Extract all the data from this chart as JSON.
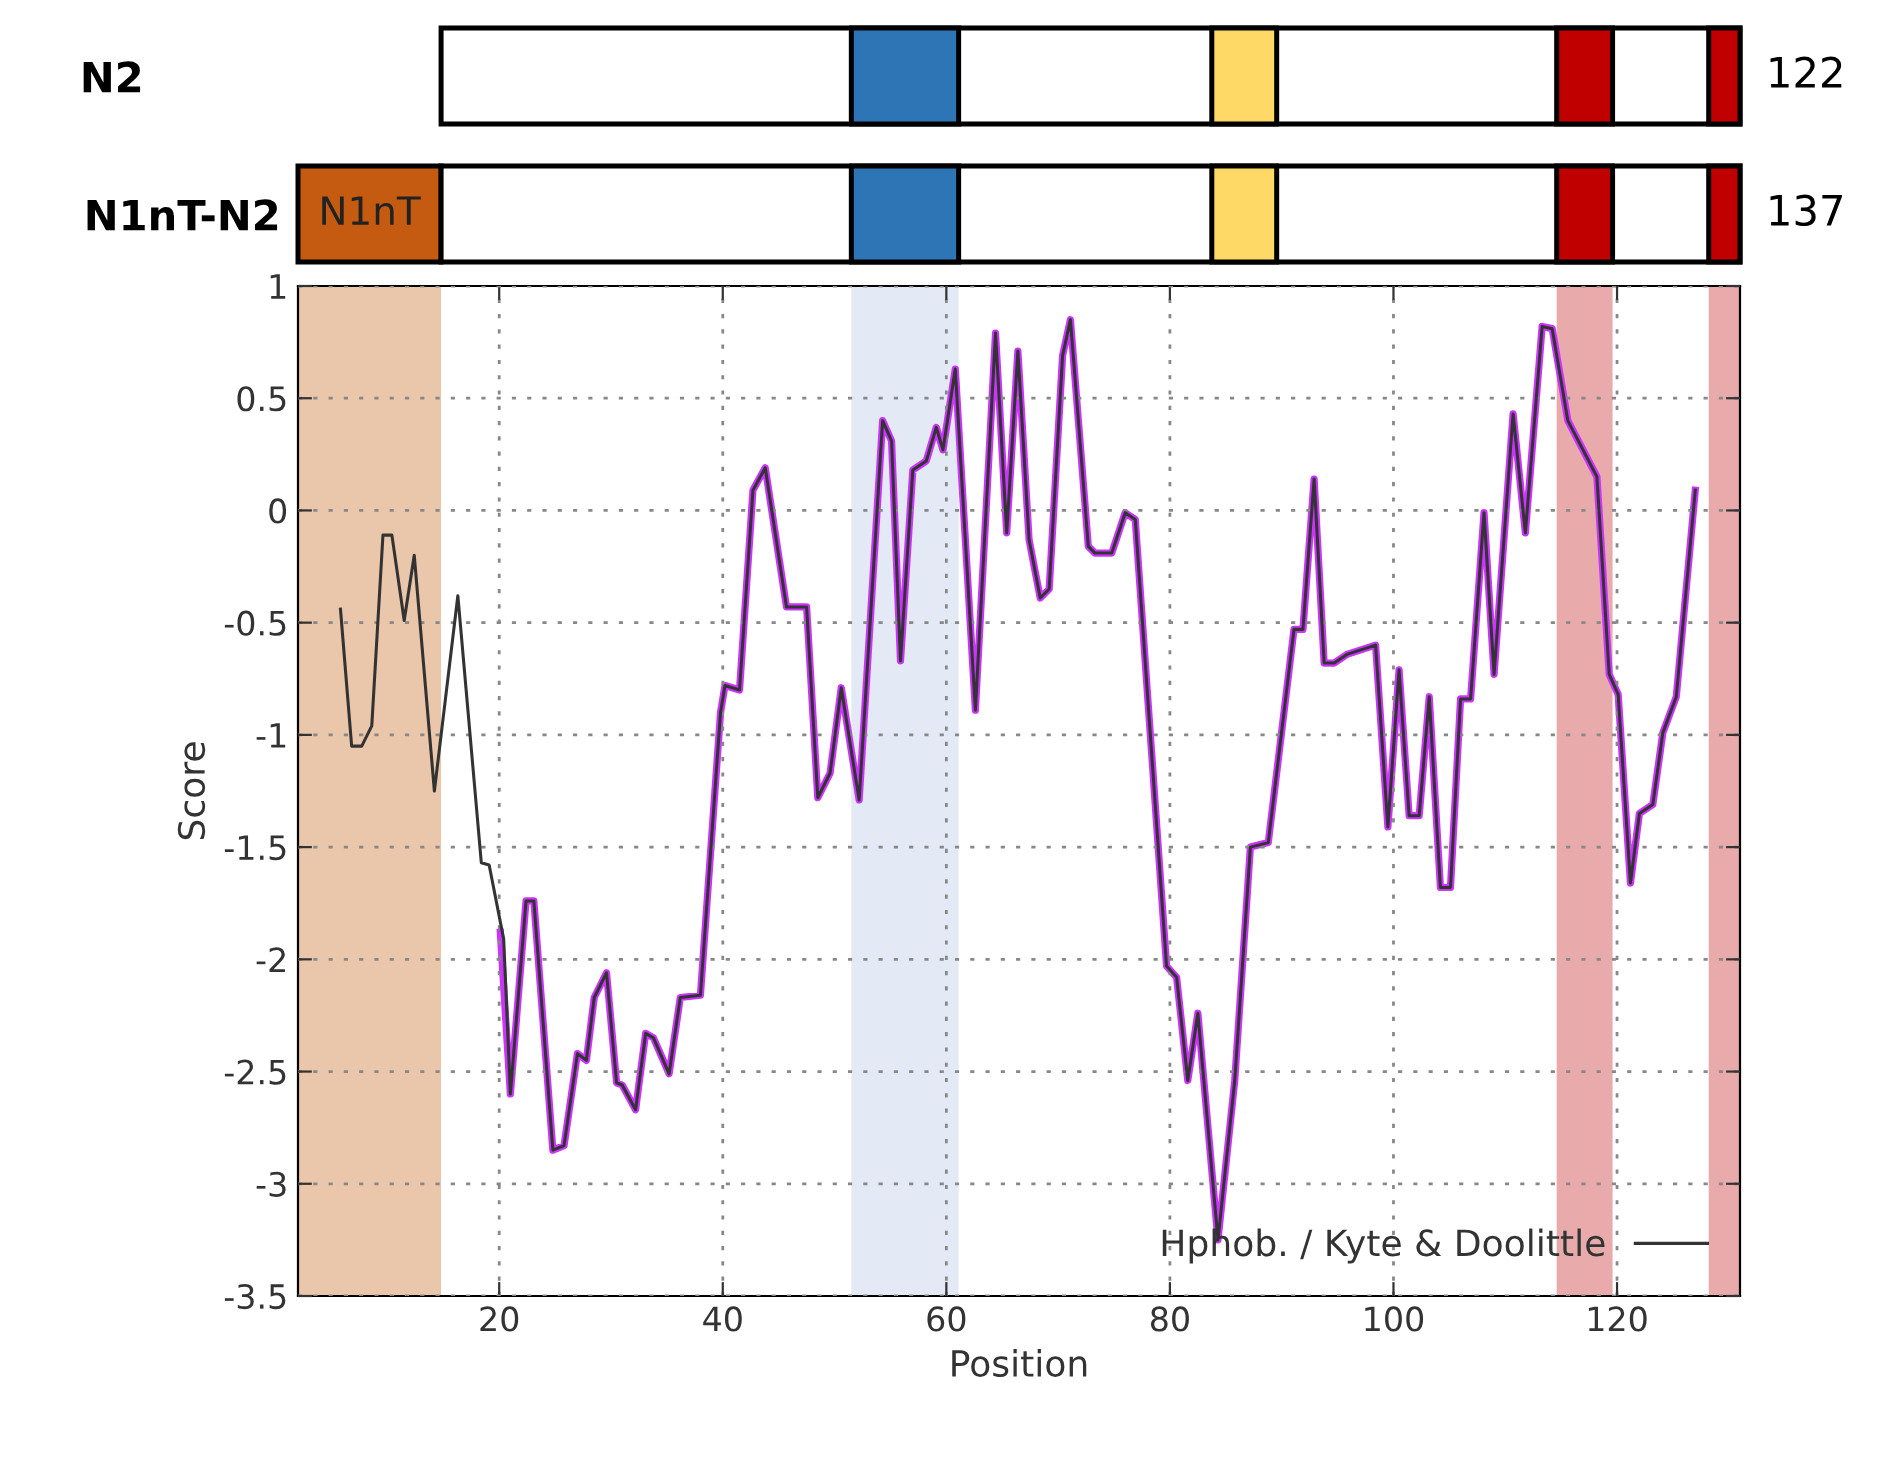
{
  "chart_data": [
    {
      "type": "other",
      "annotations": [
        "N2",
        "122"
      ]
    },
    {
      "type": "other",
      "annotations": [
        "N1nT-N2",
        "137",
        "N1nT"
      ]
    },
    {
      "type": "line",
      "xlabel": "Position",
      "ylabel": "Score",
      "xlim": [
        2,
        131
      ],
      "ylim": [
        -3.5,
        1
      ],
      "xticks": [
        20,
        40,
        60,
        80,
        100,
        120
      ],
      "yticks": [
        -3.5,
        -3,
        -2.5,
        -2,
        -1.5,
        -1,
        -0.5,
        0,
        0.5,
        1
      ],
      "grid": true,
      "legend": "bottom right",
      "line_style": "solid",
      "marker": "none",
      "bands": [
        {
          "axis": "x",
          "from": 2,
          "to": 14.8,
          "color": "#eac7ab"
        },
        {
          "axis": "x",
          "from": 51.5,
          "to": 61.1,
          "color": "#e3eaf5"
        },
        {
          "axis": "x",
          "from": 114.6,
          "to": 119.6,
          "color": "#e8aaaa"
        },
        {
          "axis": "x",
          "from": 128.2,
          "to": 131,
          "color": "#e8aaaa"
        }
      ],
      "series": [
        {
          "color": "#cc33ff",
          "x": [
            20.1,
            21.0,
            22.4,
            23.1,
            24.8,
            25.8,
            27.0,
            27.8,
            28.5,
            29.6,
            30.5,
            31.0,
            32.2,
            33.1,
            33.8,
            35.2,
            36.2,
            38.0,
            39.8,
            40.2,
            41.5,
            42.7,
            43.8,
            45.7,
            47.5,
            48.5,
            49.6,
            50.6,
            52.2,
            54.3,
            55.1,
            55.9,
            57.0,
            58.2,
            59.1,
            59.7,
            60.8,
            62.6,
            64.4,
            65.4,
            66.4,
            67.4,
            68.4,
            69.2,
            70.4,
            71.1,
            72.7,
            73.3,
            74.8,
            76.0,
            76.9,
            79.7,
            80.6,
            81.6,
            82.5,
            84.3,
            85.8,
            87.2,
            88.8,
            91.1,
            91.9,
            92.9,
            93.8,
            94.7,
            95.9,
            98.4,
            99.5,
            100.5,
            101.4,
            102.3,
            103.2,
            104.2,
            105.1,
            106.0,
            106.9,
            108.1,
            109.0,
            110.7,
            111.8,
            113.3,
            114.2,
            115.6,
            118.2,
            119.3,
            120.1,
            121.2,
            122.0,
            123.2,
            124.1,
            125.3,
            127.0
          ],
          "values": [
            -1.88,
            -2.6,
            -1.74,
            -1.74,
            -2.85,
            -2.83,
            -2.42,
            -2.45,
            -2.17,
            -2.06,
            -2.55,
            -2.56,
            -2.67,
            -2.33,
            -2.35,
            -2.51,
            -2.17,
            -2.16,
            -0.9,
            -0.78,
            -0.8,
            0.09,
            0.19,
            -0.43,
            -0.43,
            -1.28,
            -1.17,
            -0.79,
            -1.29,
            0.4,
            0.31,
            -0.67,
            0.18,
            0.22,
            0.37,
            0.27,
            0.63,
            -0.89,
            0.79,
            -0.1,
            0.71,
            -0.13,
            -0.39,
            -0.35,
            0.69,
            0.85,
            -0.16,
            -0.19,
            -0.19,
            -0.01,
            -0.04,
            -2.03,
            -2.08,
            -2.54,
            -2.24,
            -3.25,
            -2.54,
            -1.5,
            -1.48,
            -0.53,
            -0.53,
            0.14,
            -0.68,
            -0.68,
            -0.64,
            -0.6,
            -1.41,
            -0.71,
            -1.36,
            -1.36,
            -0.83,
            -1.68,
            -1.68,
            -0.84,
            -0.84,
            -0.01,
            -0.73,
            0.43,
            -0.1,
            0.82,
            0.81,
            0.4,
            0.15,
            -0.73,
            -0.82,
            -1.66,
            -1.35,
            -1.31,
            -0.99,
            -0.83,
            0.09
          ]
        },
        {
          "name": "Hphob. / Kyte & Doolittle",
          "color": "#333333",
          "x": [
            5.8,
            6.8,
            7.7,
            8.6,
            9.6,
            10.4,
            11.5,
            12.4,
            14.2,
            16.3,
            18.4,
            19.1,
            20.4,
            21.0,
            22.4,
            23.1,
            24.8,
            25.8,
            27.0,
            27.8,
            28.5,
            29.6,
            30.5,
            31.0,
            32.2,
            33.1,
            33.8,
            35.2,
            36.2,
            38.0,
            39.8,
            40.2,
            41.5,
            42.7,
            43.8,
            45.7,
            47.5,
            48.5,
            49.6,
            50.6,
            52.2,
            54.3,
            55.1,
            55.9,
            57.0,
            58.2,
            59.1,
            59.7,
            60.8,
            62.6,
            64.4,
            65.4,
            66.4,
            67.4,
            68.4,
            69.2,
            70.4,
            71.1,
            72.7,
            73.3,
            74.8,
            76.0,
            76.9,
            79.7,
            80.6,
            81.6,
            82.5,
            84.3,
            85.8,
            87.2,
            88.8,
            91.1,
            91.9,
            92.9,
            93.8,
            94.7,
            95.9,
            98.4,
            99.5,
            100.5,
            101.4,
            102.3,
            103.2,
            104.2,
            105.1,
            106.0,
            106.9,
            108.1,
            109.0,
            110.7,
            111.8,
            113.3,
            114.2,
            115.6,
            118.2,
            119.3,
            120.1,
            121.2,
            122.0,
            123.2,
            124.1,
            125.3,
            127.0
          ],
          "values": [
            -0.44,
            -1.05,
            -1.05,
            -0.96,
            -0.11,
            -0.11,
            -0.49,
            -0.2,
            -1.25,
            -0.38,
            -1.57,
            -1.58,
            -1.91,
            -2.6,
            -1.74,
            -1.74,
            -2.85,
            -2.83,
            -2.42,
            -2.45,
            -2.17,
            -2.06,
            -2.55,
            -2.56,
            -2.67,
            -2.33,
            -2.35,
            -2.51,
            -2.17,
            -2.16,
            -0.9,
            -0.78,
            -0.8,
            0.09,
            0.19,
            -0.43,
            -0.43,
            -1.28,
            -1.17,
            -0.79,
            -1.29,
            0.4,
            0.31,
            -0.67,
            0.18,
            0.22,
            0.37,
            0.27,
            0.63,
            -0.89,
            0.79,
            -0.1,
            0.71,
            -0.13,
            -0.39,
            -0.35,
            0.69,
            0.85,
            -0.16,
            -0.19,
            -0.19,
            -0.01,
            -0.04,
            -2.03,
            -2.08,
            -2.54,
            -2.24,
            -3.25,
            -2.54,
            -1.5,
            -1.48,
            -0.53,
            -0.53,
            0.14,
            -0.68,
            -0.68,
            -0.64,
            -0.6,
            -1.41,
            -0.71,
            -1.36,
            -1.36,
            -0.83,
            -1.68,
            -1.68,
            -0.84,
            -0.84,
            -0.01,
            -0.73,
            0.43,
            -0.1,
            0.82,
            0.81,
            0.4,
            0.15,
            -0.73,
            -0.82,
            -1.66,
            -1.35,
            -1.31,
            -0.99,
            -0.83,
            0.09
          ]
        }
      ]
    }
  ]
}
